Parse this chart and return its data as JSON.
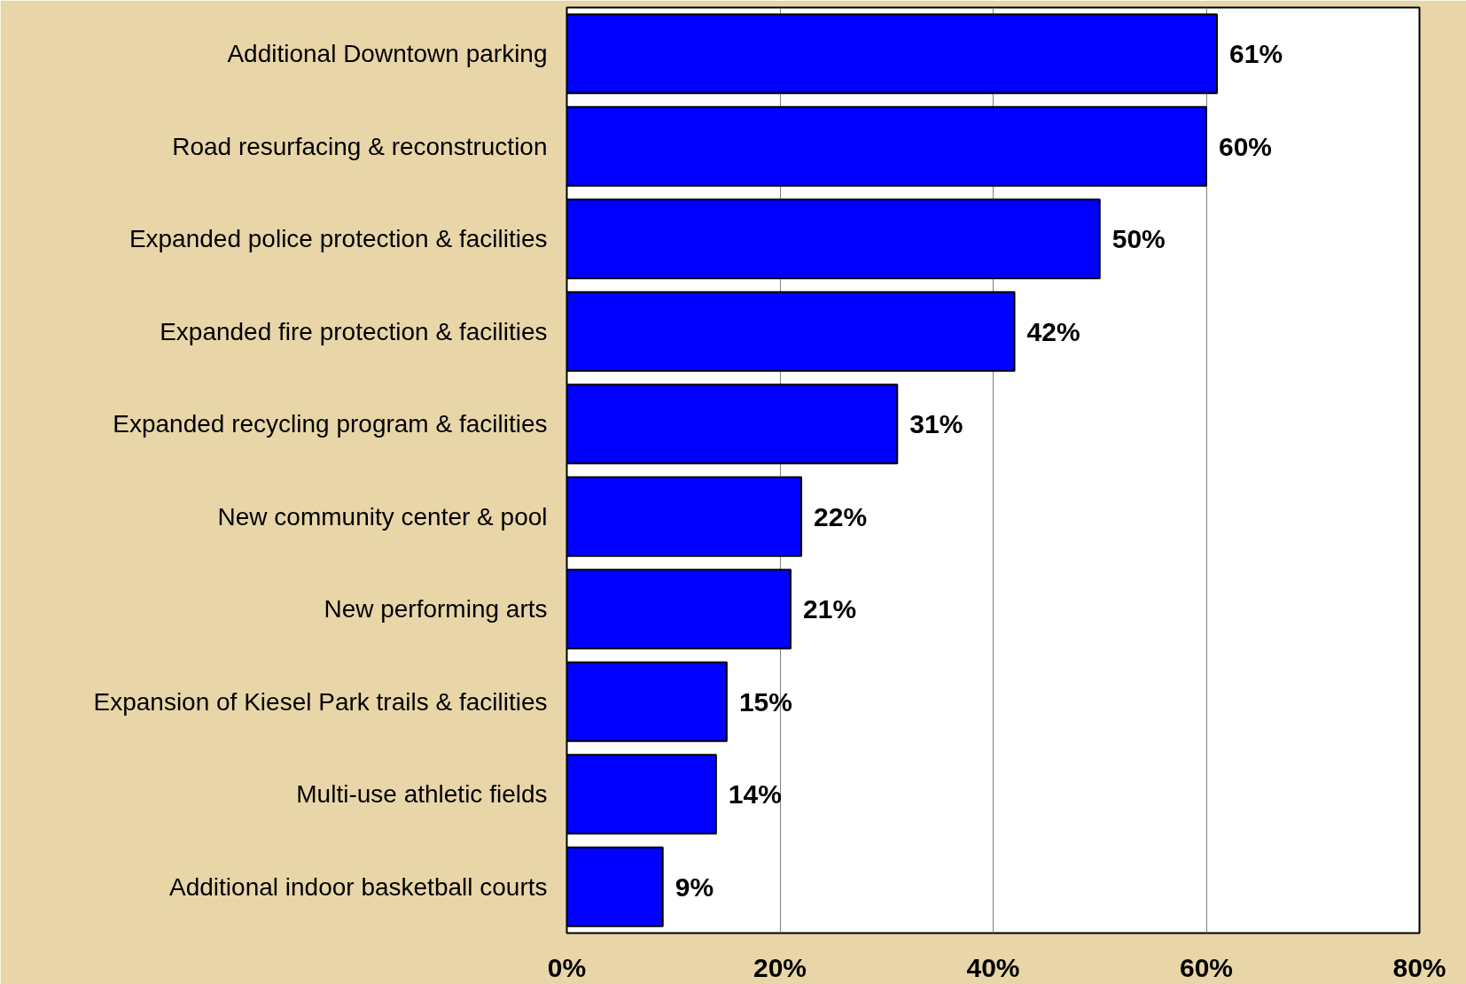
{
  "chart_data": {
    "type": "bar",
    "orientation": "horizontal",
    "categories": [
      "Additional Downtown parking",
      "Road resurfacing & reconstruction",
      "Expanded police protection & facilities",
      "Expanded fire protection & facilities",
      "Expanded recycling program & facilities",
      "New community center & pool",
      "New performing arts",
      "Expansion of Kiesel Park trails & facilities",
      "Multi-use athletic fields",
      "Additional indoor basketball courts"
    ],
    "values": [
      61,
      60,
      50,
      42,
      31,
      22,
      21,
      15,
      14,
      9
    ],
    "color": "#0000ff",
    "xlim": [
      0,
      80
    ],
    "xticks": [
      {
        "value": 0,
        "label": "0%"
      },
      {
        "value": 20,
        "label": "20%"
      },
      {
        "value": 40,
        "label": "40%"
      },
      {
        "value": 60,
        "label": "60%"
      },
      {
        "value": 80,
        "label": "80%"
      }
    ],
    "value_labels": [
      "61%",
      "60%",
      "50%",
      "42%",
      "31%",
      "22%",
      "21%",
      "15%",
      "14%",
      "9%"
    ],
    "grid": "x"
  }
}
